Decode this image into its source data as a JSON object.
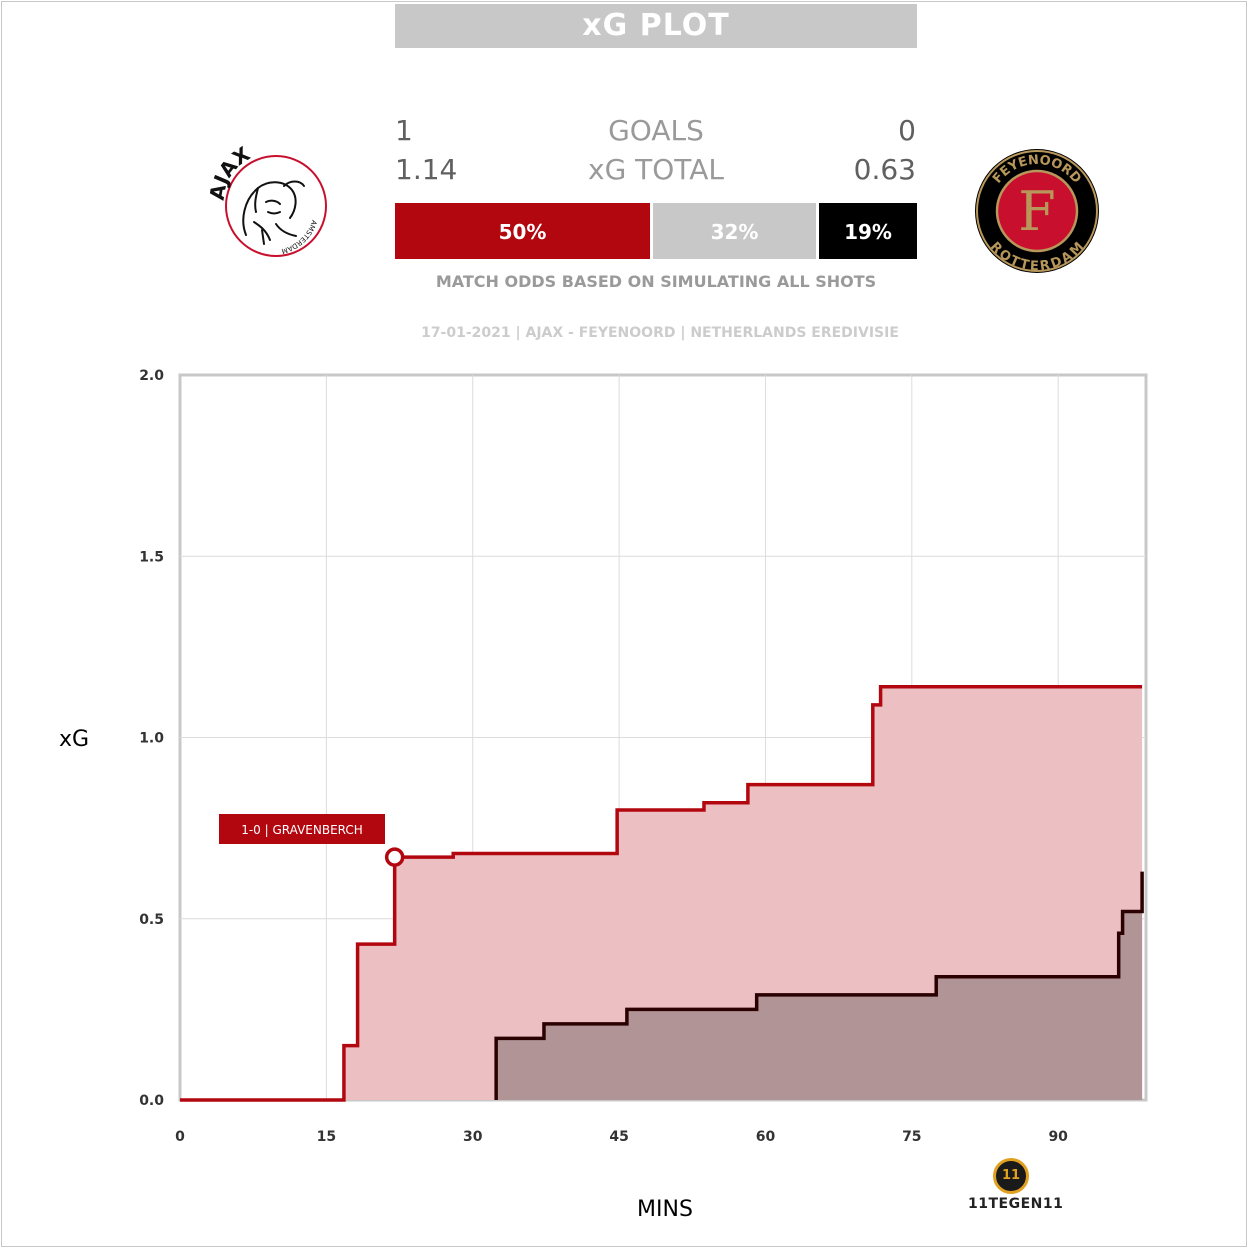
{
  "title": "xG PLOT",
  "scoreboard": {
    "home_goals": "1",
    "away_goals": "0",
    "goals_label": "GOALS",
    "home_xg": "1.14",
    "away_xg": "0.63",
    "xg_label": "xG TOTAL"
  },
  "odds": {
    "home_win": "50%",
    "draw": "32%",
    "away_win": "19%",
    "home_fraction": 0.5,
    "draw_fraction": 0.32,
    "away_fraction": 0.19,
    "caption": "MATCH ODDS BASED ON SIMULATING ALL SHOTS"
  },
  "match_info": "17-01-2021 | AJAX - FEYENOORD | NETHERLANDS EREDIVISIE",
  "logos": {
    "home_text": "AJAX",
    "home_sub": "AMSTERDAM",
    "away_top": "FEYENOORD",
    "away_letter": "F",
    "away_bottom": "ROTTERDAM",
    "brand_mark": "11",
    "brand_text": "11TEGEN11"
  },
  "colors": {
    "home": "#b30710",
    "home_fill": "#ecc0c3",
    "away": "#2a0000",
    "away_fill": "#ae9192",
    "draw": "#c8c8c8"
  },
  "chart_data": {
    "type": "line",
    "step": true,
    "xlabel": "MINS",
    "ylabel": "xG",
    "xlim": [
      0,
      99
    ],
    "ylim": [
      0,
      2.0
    ],
    "xticks": [
      0,
      15,
      30,
      45,
      60,
      75,
      90
    ],
    "yticks": [
      "0.0",
      "0.5",
      "1.0",
      "1.5",
      "2.0"
    ],
    "grid": true,
    "series": [
      {
        "team": "home",
        "x": [
          0,
          16.8,
          18.2,
          22.0,
          28.0,
          44.8,
          53.7,
          58.2,
          71.0,
          71.8,
          98.6
        ],
        "y": [
          0,
          0.15,
          0.43,
          0.67,
          0.68,
          0.8,
          0.82,
          0.87,
          1.09,
          1.14,
          1.14
        ]
      },
      {
        "team": "away",
        "x": [
          32.4,
          37.3,
          45.8,
          59.1,
          77.5,
          96.2,
          96.6,
          97.1,
          98.6
        ],
        "y": [
          0.17,
          0.21,
          0.25,
          0.29,
          0.34,
          0.46,
          0.52,
          0.52,
          0.63
        ]
      }
    ],
    "annotation": {
      "text": "1-0 | GRAVENBERCH",
      "x": 22.0,
      "y": 0.67
    }
  }
}
